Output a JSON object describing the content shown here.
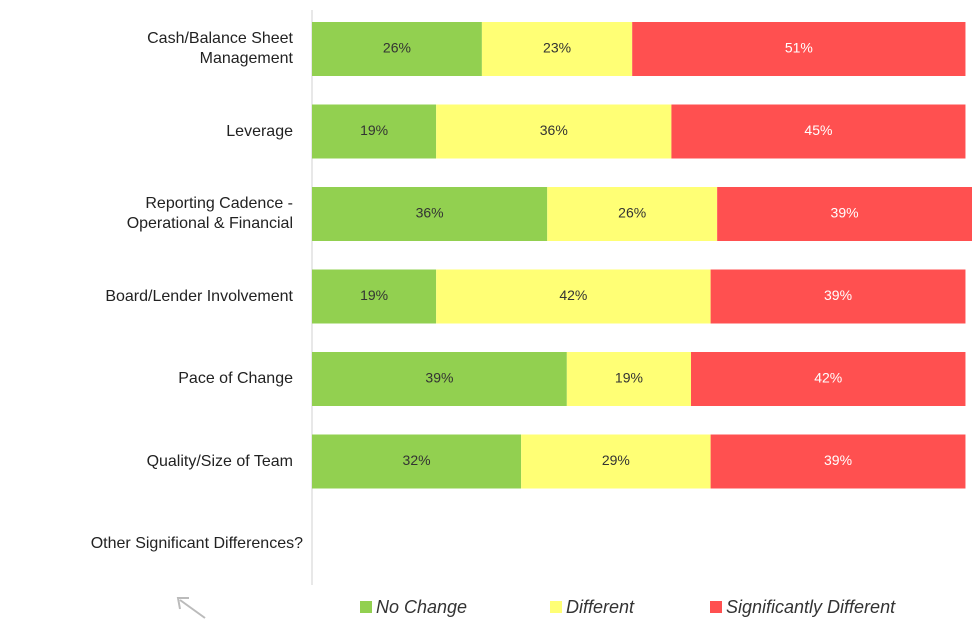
{
  "chart_data": {
    "type": "stacked-bar-horizontal",
    "categories": [
      "Cash/Balance Sheet\nManagement",
      "Leverage",
      "Reporting Cadence -\nOperational & Financial",
      "Board/Lender Involvement",
      "Pace of Change",
      "Quality/Size of Team",
      "Other Significant Differences?"
    ],
    "series": [
      {
        "name": "No Change",
        "color": "#92d050",
        "label_color": "#333333",
        "values": [
          26,
          19,
          36,
          19,
          39,
          32,
          null
        ],
        "value_labels": [
          "26%",
          "19%",
          "36%",
          "19%",
          "39%",
          "32%",
          null
        ]
      },
      {
        "name": "Different",
        "color": "#ffff75",
        "label_color": "#333333",
        "values": [
          23,
          36,
          26,
          42,
          19,
          29,
          null
        ],
        "value_labels": [
          "23%",
          "36%",
          "26%",
          "42%",
          "19%",
          "29%",
          null
        ]
      },
      {
        "name": "Significantly Different",
        "color": "#ff5050",
        "label_color": "#ffffff",
        "values": [
          51,
          45,
          39,
          39,
          42,
          39,
          null
        ],
        "value_labels": [
          "51%",
          "45%",
          "39%",
          "39%",
          "42%",
          "39%",
          null
        ]
      }
    ],
    "legend": "bottom"
  }
}
